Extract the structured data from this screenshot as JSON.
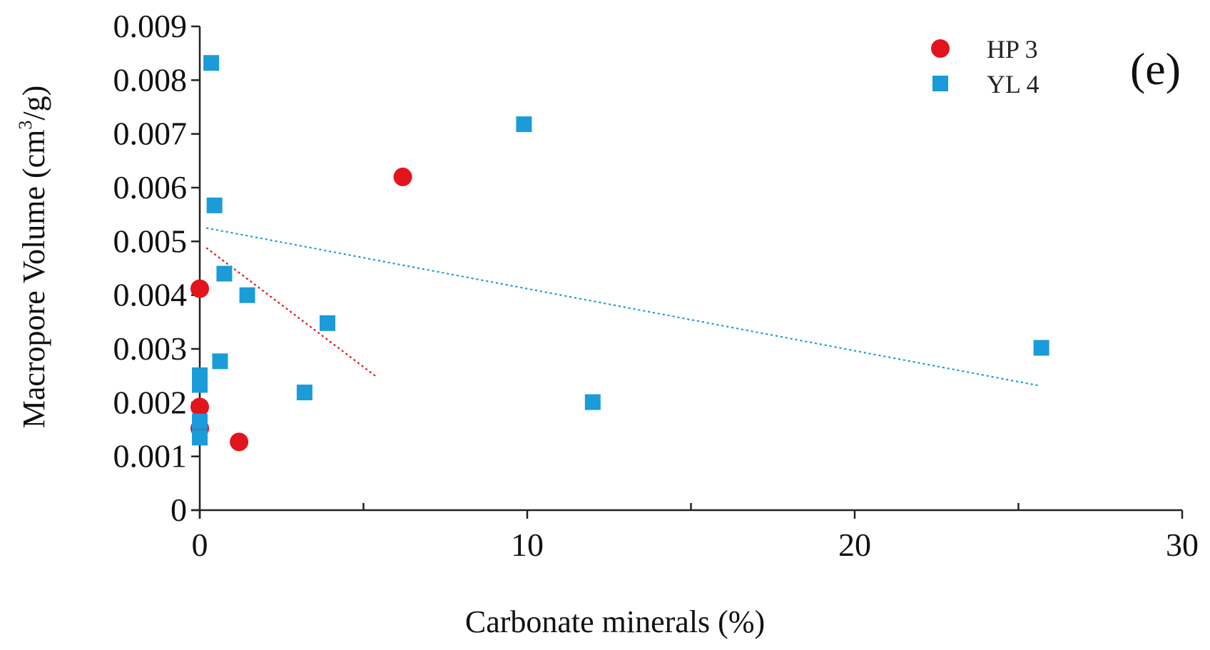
{
  "chart_data": {
    "type": "scatter",
    "panel_label": "(e)",
    "xlabel": "Carbonate minerals (%)",
    "ylabel": "Macropore Volume (cm",
    "ylabel_sup": "3",
    "ylabel_tail": "/g)",
    "xlim": [
      0,
      30
    ],
    "ylim": [
      0,
      0.009
    ],
    "x_ticks": [
      0,
      10,
      20,
      30
    ],
    "x_tick_labels": [
      "0",
      "10",
      "20",
      "30"
    ],
    "x_minor_ticks": [
      5,
      15,
      25
    ],
    "y_ticks": [
      0,
      0.001,
      0.002,
      0.003,
      0.004,
      0.005,
      0.006,
      0.007,
      0.008,
      0.009
    ],
    "y_tick_labels": [
      "0",
      "0.001",
      "0.002",
      "0.003",
      "0.004",
      "0.005",
      "0.006",
      "0.007",
      "0.008",
      "0.009"
    ],
    "legend_position": "top-right",
    "series": [
      {
        "name": "HP 3",
        "marker": "circle",
        "color": "#e3141c",
        "points": [
          {
            "x": 0.0,
            "y": 0.00412
          },
          {
            "x": 0.0,
            "y": 0.00192
          },
          {
            "x": 0.0,
            "y": 0.00152
          },
          {
            "x": 1.2,
            "y": 0.00127
          },
          {
            "x": 6.2,
            "y": 0.0062
          }
        ],
        "trendline": {
          "x": [
            0.2,
            5.4
          ],
          "y": [
            0.00488,
            0.00248
          ]
        }
      },
      {
        "name": "YL 4",
        "marker": "square",
        "color": "#1b9bd8",
        "points": [
          {
            "x": 0.35,
            "y": 0.00832
          },
          {
            "x": 9.9,
            "y": 0.00718
          },
          {
            "x": 0.45,
            "y": 0.00567
          },
          {
            "x": 0.75,
            "y": 0.0044
          },
          {
            "x": 1.45,
            "y": 0.004
          },
          {
            "x": 3.9,
            "y": 0.00348
          },
          {
            "x": 25.7,
            "y": 0.00302
          },
          {
            "x": 0.62,
            "y": 0.00277
          },
          {
            "x": 0.0,
            "y": 0.00251
          },
          {
            "x": 0.0,
            "y": 0.00233
          },
          {
            "x": 3.2,
            "y": 0.00219
          },
          {
            "x": 12.0,
            "y": 0.00201
          },
          {
            "x": 0.0,
            "y": 0.00165
          },
          {
            "x": 0.0,
            "y": 0.00135
          }
        ],
        "trendline": {
          "x": [
            0.2,
            25.6
          ],
          "y": [
            0.00525,
            0.00232
          ]
        }
      }
    ]
  }
}
